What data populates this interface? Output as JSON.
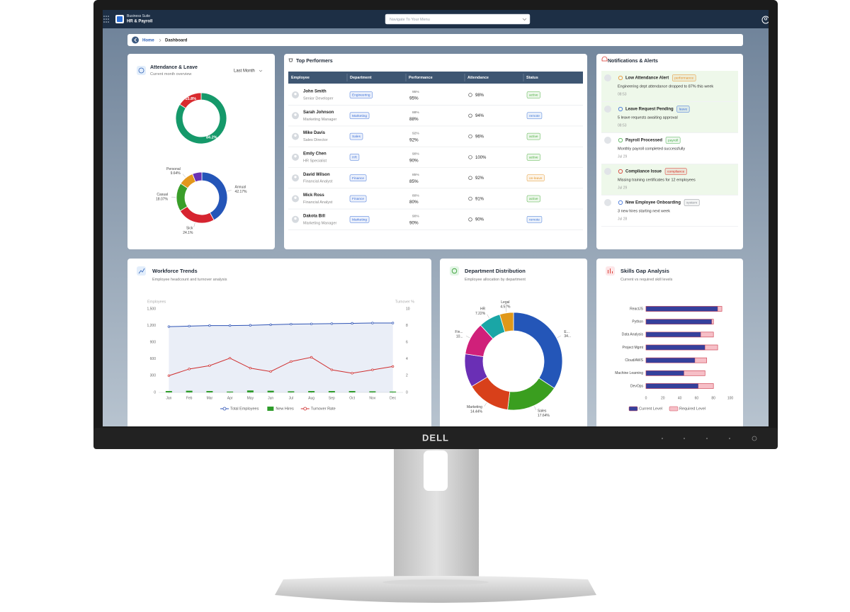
{
  "device": {
    "brand": "DELL"
  },
  "header": {
    "brand": "Business Suite",
    "product": "HR & Payroll",
    "search_placeholder": "Navigate To Your Menu"
  },
  "breadcrumb": [
    "Home",
    "Dashboard"
  ],
  "attendance_card": {
    "title": "Attendance & Leave",
    "subtitle": "Current month overview",
    "period": "Last Month"
  },
  "top_performers": {
    "title": "Top Performers",
    "columns": [
      "Employee",
      "Department",
      "Performance",
      "Attendance",
      "Status"
    ],
    "rows": [
      {
        "name": "John Smith",
        "role": "Senior Developer",
        "department": "Engineering",
        "performance": "95%",
        "attendance": "98%",
        "status": "active",
        "status_color": "#4caf3f"
      },
      {
        "name": "Sarah Johnson",
        "role": "Marketing Manager",
        "department": "Marketing",
        "performance": "88%",
        "attendance": "94%",
        "status": "remote",
        "status_color": "#3f77d6"
      },
      {
        "name": "Mike Davis",
        "role": "Sales Director",
        "department": "Sales",
        "performance": "92%",
        "attendance": "96%",
        "status": "active",
        "status_color": "#4caf3f"
      },
      {
        "name": "Emily Chen",
        "role": "HR Specialist",
        "department": "HR",
        "performance": "90%",
        "attendance": "100%",
        "status": "active",
        "status_color": "#4caf3f"
      },
      {
        "name": "David Wilson",
        "role": "Financial Analyst",
        "department": "Finance",
        "performance": "85%",
        "attendance": "92%",
        "status": "on-leave",
        "status_color": "#e5962a"
      },
      {
        "name": "Mick Ross",
        "role": "Financial Analyst",
        "department": "Finance",
        "performance": "80%",
        "attendance": "91%",
        "status": "active",
        "status_color": "#4caf3f"
      },
      {
        "name": "Dakota Bill",
        "role": "Marketing Manager",
        "department": "Marketing",
        "performance": "90%",
        "attendance": "90%",
        "status": "remote",
        "status_color": "#3f77d6"
      }
    ]
  },
  "notifications": {
    "title": "Notifications & Alerts",
    "items": [
      {
        "title": "Low Attendance Alert",
        "tag": "performance",
        "tag_color": "#e8912c",
        "color": "#e8912c",
        "message": "Engineering dept attendance dropped to 87% this week",
        "time": "08:53",
        "highlighted": true
      },
      {
        "title": "Leave Request Pending",
        "tag": "leave",
        "tag_color": "#3b6fd8",
        "color": "#3b6fd8",
        "message": "5 leave requests awaiting approval",
        "time": "08:53",
        "highlighted": true
      },
      {
        "title": "Payroll Processed",
        "tag": "payroll",
        "tag_color": "#4caf50",
        "color": "#4caf50",
        "message": "Monthly payroll completed successfully",
        "time": "Jul 29",
        "highlighted": false
      },
      {
        "title": "Compliance Issue",
        "tag": "compliance",
        "tag_color": "#d9342b",
        "color": "#d9342b",
        "message": "Missing training certificates for 12 employees",
        "time": "Jul 29",
        "highlighted": true
      },
      {
        "title": "New Employee Onboarding",
        "tag": "system",
        "tag_color": "#8a8f96",
        "color": "#3b6fd8",
        "message": "3 new hires starting next week",
        "time": "Jul 28",
        "highlighted": false
      }
    ]
  },
  "chart_data": [
    {
      "type": "pie",
      "donut": true,
      "label_position": "inside",
      "categories": [
        null,
        null
      ],
      "values": [
        84.2,
        15.8
      ],
      "value_labels": [
        "84.2%",
        "15.8%"
      ],
      "colors": [
        "#15996a",
        "#d92b2f"
      ]
    },
    {
      "type": "pie",
      "donut": true,
      "label_position": "outside",
      "categories": [
        "Annual",
        "Sick",
        "Casual",
        "Personal",
        null
      ],
      "values": [
        42.17,
        24.1,
        18.07,
        9.64,
        6.02
      ],
      "value_labels": [
        "42.17%",
        "24.1%",
        "18.07%",
        "9.64%",
        null
      ],
      "colors": [
        "#2455b8",
        "#d62430",
        "#3a9e2a",
        "#e3971c",
        "#6a32b3"
      ]
    },
    {
      "type": "combo",
      "title": "Workforce Trends",
      "subtitle": "Employee headcount and turnover analysis",
      "categories": [
        "Jan",
        "Feb",
        "Mar",
        "Apr",
        "May",
        "Jun",
        "Jul",
        "Aug",
        "Sep",
        "Oct",
        "Nov",
        "Dec"
      ],
      "y_label": "Employees",
      "y2_label": "Turnover %",
      "ylim": [
        0,
        1500
      ],
      "yticks": [
        0,
        300,
        600,
        900,
        {
          "value": 1200,
          "label": "1,200"
        },
        {
          "value": 1500,
          "label": "1,500"
        }
      ],
      "y2lim": [
        0,
        10
      ],
      "y2ticks": [
        0,
        2,
        4,
        6,
        8,
        10
      ],
      "legend": "bottom",
      "series": [
        {
          "name": "Total Employees",
          "kind": "line",
          "area": true,
          "color": "#2f54b5",
          "values": [
            1180,
            1190,
            1200,
            1200,
            1205,
            1215,
            1225,
            1230,
            1235,
            1240,
            1245,
            1245
          ]
        },
        {
          "name": "New Hires",
          "kind": "bar",
          "color": "#2e9c2a",
          "values": [
            25,
            30,
            25,
            15,
            35,
            30,
            20,
            25,
            25,
            25,
            20,
            15
          ]
        },
        {
          "name": "Turnover Rate",
          "kind": "line",
          "axis": "y2",
          "color": "#cf2e2e",
          "values": [
            2.0,
            2.8,
            3.2,
            4.1,
            2.9,
            2.5,
            3.7,
            4.2,
            2.7,
            2.3,
            2.7,
            3.1
          ]
        }
      ]
    },
    {
      "type": "pie",
      "donut": true,
      "label_position": "outside",
      "title": "Department Distribution",
      "subtitle": "Employee allocation by department",
      "categories": [
        "E...",
        "Sales",
        "Marketing",
        null,
        "Fin...",
        "HR",
        "Legal"
      ],
      "values": [
        34.3,
        17.64,
        14.44,
        11.03,
        10.8,
        7.22,
        4.57
      ],
      "value_labels": [
        "34...",
        "17.64%",
        "14.44%",
        null,
        "10...",
        "7.22%",
        "4.57%"
      ],
      "colors": [
        "#2456b8",
        "#3a9e1f",
        "#d8401a",
        "#6a2fb5",
        "#d0207a",
        "#1aa6a6",
        "#e0981a"
      ]
    },
    {
      "type": "bar",
      "orientation": "horizontal",
      "title": "Skills Gap Analysis",
      "subtitle": "Current vs required skill levels",
      "categories": [
        "ReactJS",
        "Python",
        "Data Analysis",
        "Project Mgmt",
        "Cloud/AWS",
        "Machine Learning",
        "DevOps"
      ],
      "xlim": [
        0,
        100
      ],
      "xticks": [
        0,
        20,
        40,
        60,
        80,
        100
      ],
      "legend": "bottom",
      "series": [
        {
          "name": "Current Level",
          "color": "#35409c",
          "values": [
            85,
            78,
            65,
            70,
            58,
            45,
            62
          ]
        },
        {
          "name": "Required Level",
          "color": "#f6bfc7",
          "values": [
            90,
            80,
            80,
            85,
            72,
            70,
            80
          ]
        }
      ]
    }
  ]
}
